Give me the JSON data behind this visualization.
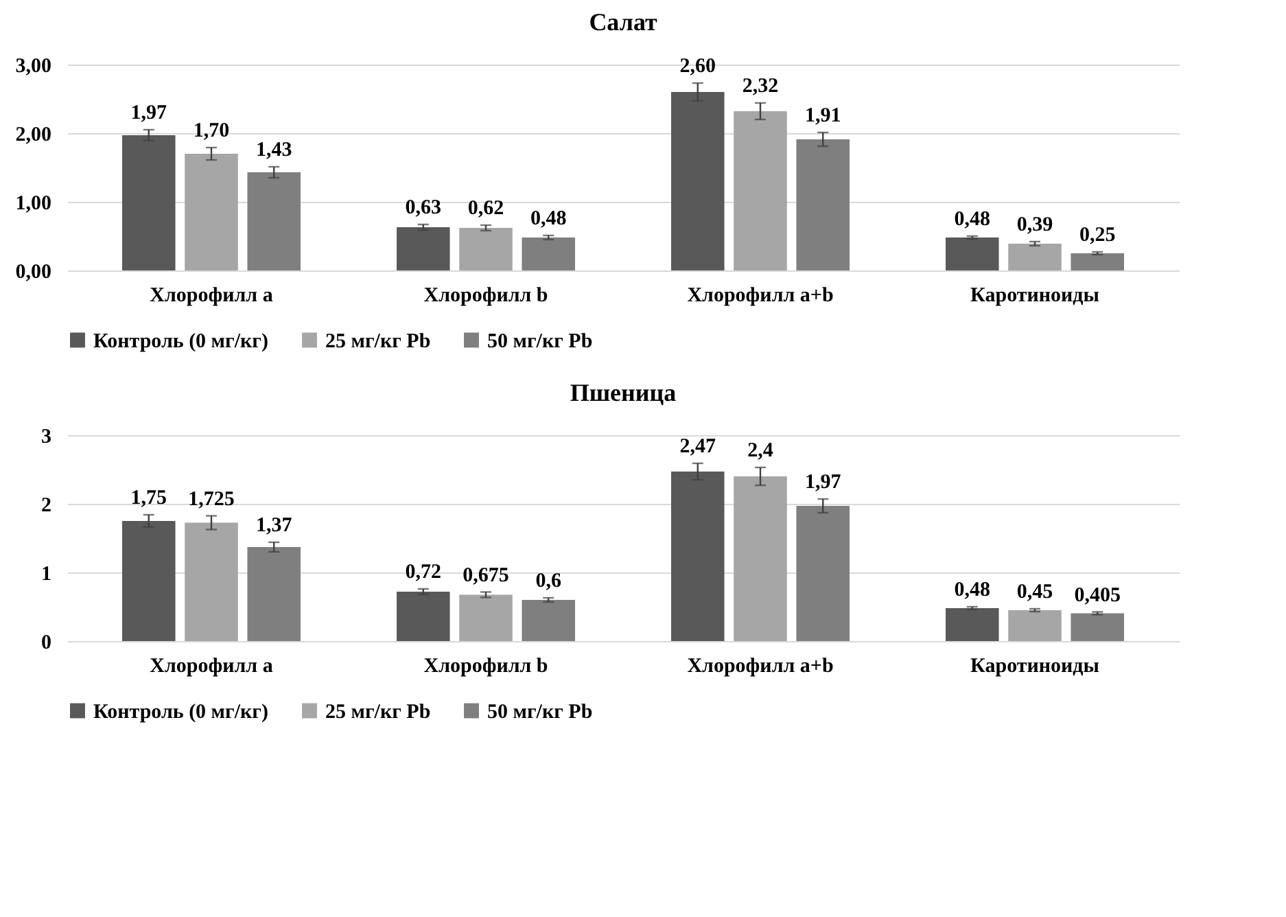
{
  "chart_data": [
    {
      "type": "bar",
      "title": "Салат",
      "categories": [
        "Хлорофилл a",
        "Хлорофилл b",
        "Хлорофилл a+b",
        "Каротиноиды"
      ],
      "series": [
        {
          "name": "Контроль (0 мг/кг)",
          "color": "#595959",
          "values": [
            1.97,
            0.63,
            2.6,
            0.48
          ],
          "errors": [
            0.08,
            0.04,
            0.13,
            0.02
          ],
          "value_labels": [
            "1,97",
            "0,63",
            "2,60",
            "0,48"
          ]
        },
        {
          "name": "25 мг/кг Pb",
          "color": "#a6a6a6",
          "values": [
            1.7,
            0.62,
            2.32,
            0.39
          ],
          "errors": [
            0.09,
            0.04,
            0.12,
            0.03
          ],
          "value_labels": [
            "1,70",
            "0,62",
            "2,32",
            "0,39"
          ]
        },
        {
          "name": "50 мг/кг Pb",
          "color": "#7f7f7f",
          "values": [
            1.43,
            0.48,
            1.91,
            0.25
          ],
          "errors": [
            0.08,
            0.03,
            0.1,
            0.02
          ],
          "value_labels": [
            "1,43",
            "0,48",
            "1,91",
            "0,25"
          ]
        }
      ],
      "ylim": [
        0,
        3
      ],
      "yticks": [
        {
          "value": 0,
          "label": "0,00"
        },
        {
          "value": 1,
          "label": "1,00"
        },
        {
          "value": 2,
          "label": "2,00"
        },
        {
          "value": 3,
          "label": "3,00"
        }
      ],
      "grid": "y",
      "legend": "bottom"
    },
    {
      "type": "bar",
      "title": "Пшеница",
      "categories": [
        "Хлорофилл a",
        "Хлорофилл b",
        "Хлорофилл a+b",
        "Каротиноиды"
      ],
      "series": [
        {
          "name": "Контроль (0 мг/кг)",
          "color": "#595959",
          "values": [
            1.75,
            0.72,
            2.47,
            0.48
          ],
          "errors": [
            0.09,
            0.04,
            0.12,
            0.02
          ],
          "value_labels": [
            "1,75",
            "0,72",
            "2,47",
            "0,48"
          ]
        },
        {
          "name": "25 мг/кг Pb",
          "color": "#a6a6a6",
          "values": [
            1.725,
            0.675,
            2.4,
            0.45
          ],
          "errors": [
            0.1,
            0.04,
            0.13,
            0.02
          ],
          "value_labels": [
            "1,725",
            "0,675",
            "2,4",
            "0,45"
          ]
        },
        {
          "name": "50 мг/кг Pb",
          "color": "#7f7f7f",
          "values": [
            1.37,
            0.6,
            1.97,
            0.405
          ],
          "errors": [
            0.07,
            0.03,
            0.1,
            0.02
          ],
          "value_labels": [
            "1,37",
            "0,6",
            "1,97",
            "0,405"
          ]
        }
      ],
      "ylim": [
        0,
        3
      ],
      "yticks": [
        0,
        1,
        2,
        3
      ],
      "grid": "y",
      "legend": "bottom"
    }
  ]
}
